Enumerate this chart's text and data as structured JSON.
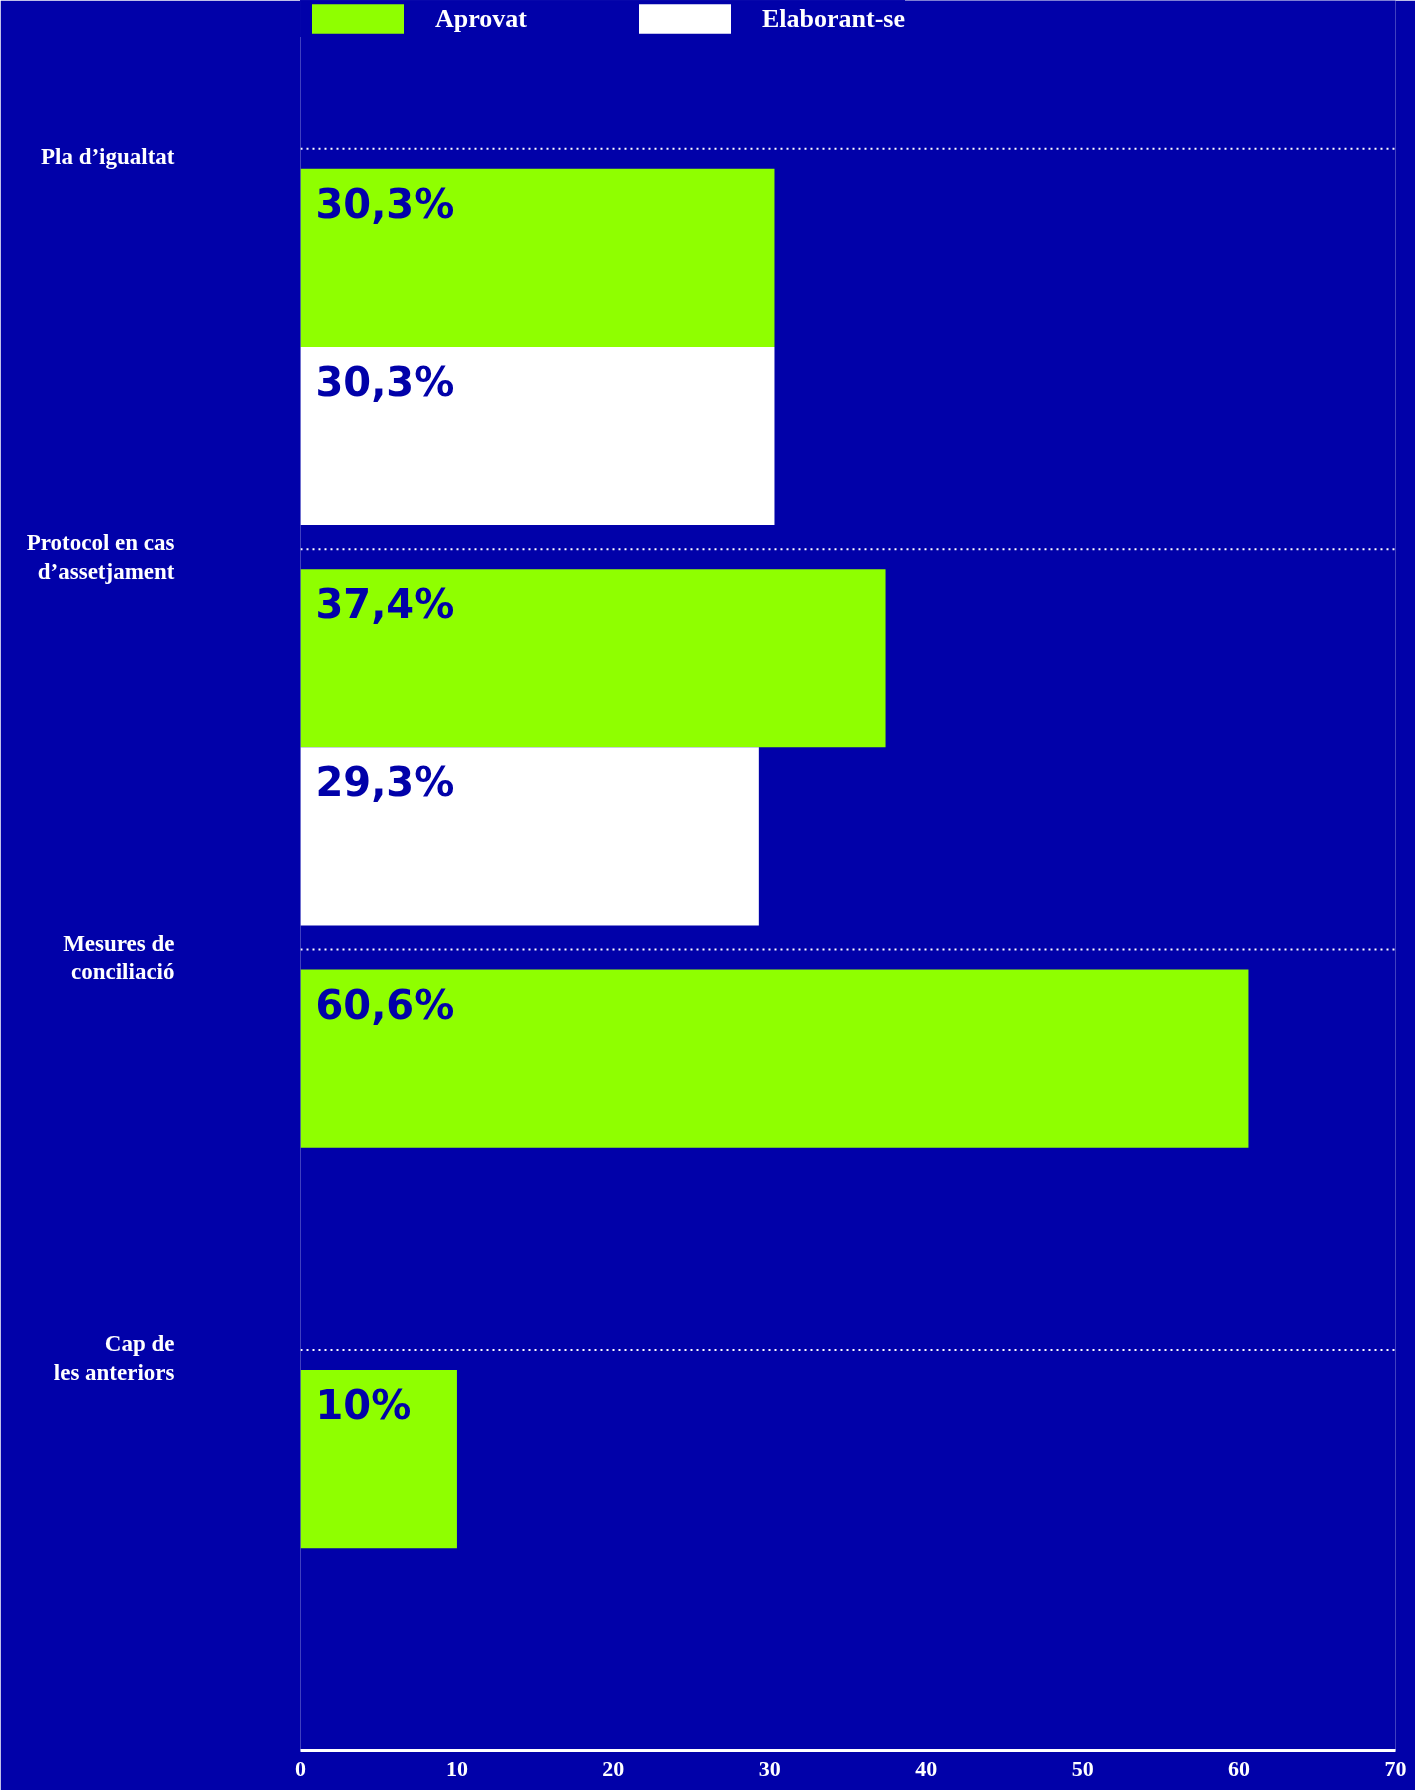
{
  "chart_data": {
    "type": "bar",
    "orientation": "horizontal",
    "categories": [
      "Pla d’igualtat",
      "Protocol en cas\nd’assetjament",
      "Mesures de\nconciliació",
      "Cap de\nles anteriors"
    ],
    "series": [
      {
        "name": "Aprovat",
        "color": "#8fff00",
        "values": [
          30.3,
          37.4,
          60.6,
          10
        ],
        "value_labels": [
          "30,3%",
          "37,4%",
          "60,6%",
          "10%"
        ]
      },
      {
        "name": "Elaborant-se",
        "color": "#ffffff",
        "values": [
          30.3,
          29.3,
          null,
          null
        ],
        "value_labels": [
          "30,3%",
          "29,3%",
          null,
          null
        ]
      }
    ],
    "xlim": [
      0,
      70
    ],
    "xticks": [
      0,
      10,
      20,
      30,
      40,
      50,
      60,
      70
    ],
    "grid": "y",
    "legend": "top"
  }
}
